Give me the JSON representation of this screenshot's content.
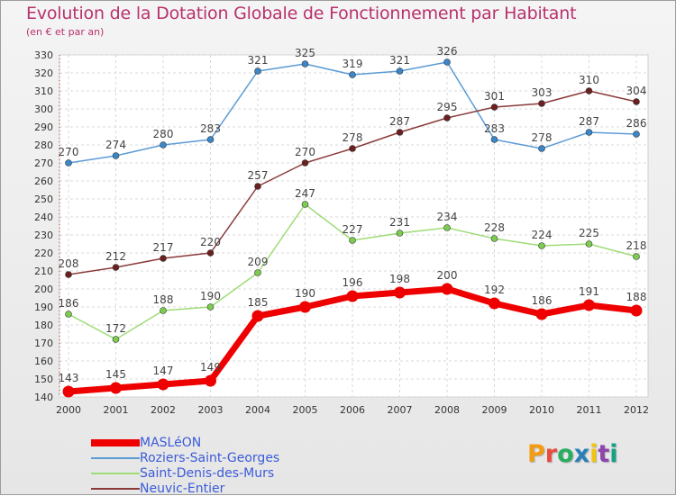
{
  "title": "Evolution de la Dotation Globale de Fonctionnement par Habitant",
  "subtitle": "(en € et par an)",
  "logo": {
    "text": "Proxiti",
    "colors": [
      "#f39c12",
      "#e74c3c",
      "#27ae60",
      "#2980b9",
      "#f1c40f",
      "#8e44ad",
      "#16a085"
    ]
  },
  "chart_data": {
    "type": "line",
    "title": "Evolution de la Dotation Globale de Fonctionnement par Habitant",
    "subtitle": "(en € et par an)",
    "x": [
      "2000",
      "2001",
      "2002",
      "2003",
      "2004",
      "2005",
      "2006",
      "2007",
      "2008",
      "2009",
      "2010",
      "2011",
      "2012"
    ],
    "ylim": [
      140,
      330
    ],
    "ystep": 10,
    "grid": true,
    "legend": "bottom-left",
    "series": [
      {
        "name": "Roziers-Saint-Georges",
        "color": "#5b9bd5",
        "dot": "#3a86c8",
        "values": [
          270,
          274,
          280,
          283,
          321,
          325,
          319,
          321,
          326,
          283,
          278,
          287,
          286
        ],
        "labels": [
          "270",
          "274",
          "280",
          "283",
          "321",
          "325",
          "319",
          "321",
          "326",
          "283",
          "278",
          "287",
          "286"
        ],
        "bold": false
      },
      {
        "name": "Saint-Denis-des-Murs",
        "color": "#9fdc77",
        "dot": "#7ccd4f",
        "values": [
          186,
          172,
          188,
          190,
          209,
          247,
          227,
          231,
          234,
          228,
          224,
          225,
          218
        ],
        "labels": [
          "186",
          "172",
          "188",
          "190",
          "209",
          "247",
          "227",
          "231",
          "234",
          "228",
          "224",
          "225",
          "218"
        ],
        "bold": false
      },
      {
        "name": "Neuvic-Entier",
        "color": "#8b3a3a",
        "dot": "#6b1f1f",
        "values": [
          208,
          212,
          217,
          220,
          257,
          270,
          278,
          287,
          295,
          301,
          303,
          310,
          304
        ],
        "labels": [
          "208",
          "212",
          "217",
          "220",
          "257",
          "270",
          "278",
          "287",
          "295",
          "301",
          "303",
          "310",
          "304"
        ],
        "bold": false
      },
      {
        "name": "MASLéON",
        "color": "#ee0000",
        "dot": "#ee0000",
        "values": [
          143,
          145,
          147,
          149,
          185,
          190,
          196,
          198,
          200,
          192,
          186,
          191,
          188
        ],
        "labels": [
          "143",
          "145",
          "147",
          "149",
          "185",
          "190",
          "196",
          "198",
          "200",
          "192",
          "186",
          "191",
          "188"
        ],
        "bold": true
      }
    ],
    "legend_order": [
      "MASLéON",
      "Roziers-Saint-Georges",
      "Saint-Denis-des-Murs",
      "Neuvic-Entier"
    ]
  }
}
